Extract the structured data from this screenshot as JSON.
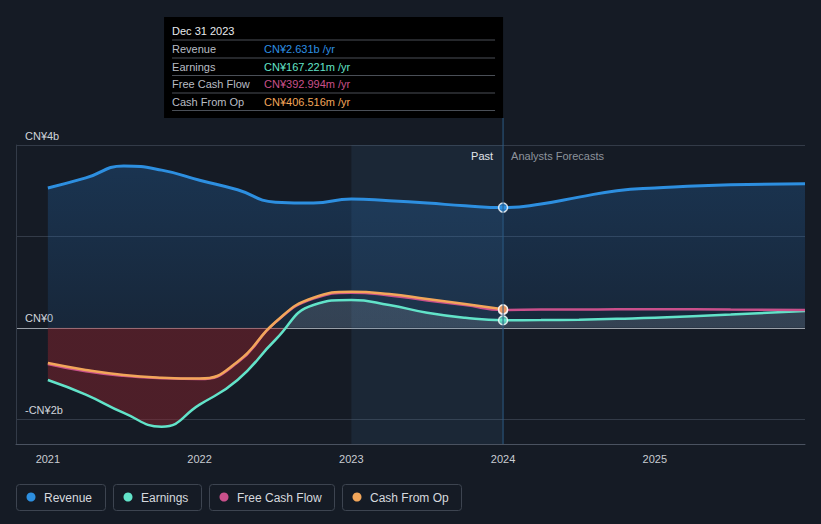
{
  "chart_data": {
    "type": "line",
    "x": [
      2021,
      2021.25,
      2021.5,
      2021.75,
      2022,
      2022.25,
      2022.5,
      2022.75,
      2023,
      2023.25,
      2023.5,
      2023.75,
      2024,
      2024.25,
      2024.5,
      2024.75,
      2025,
      2025.5,
      2025.99
    ],
    "series": [
      {
        "name": "Revenue",
        "color": "#2d8fe0",
        "values": [
          3.06,
          3.28,
          3.54,
          3.45,
          3.23,
          3.02,
          2.75,
          2.73,
          2.82,
          2.78,
          2.73,
          2.67,
          2.631,
          2.71,
          2.86,
          3.0,
          3.06,
          3.13,
          3.15
        ]
      },
      {
        "name": "Earnings",
        "color": "#62e3c9",
        "values": [
          -1.14,
          -1.46,
          -1.86,
          -2.16,
          -1.68,
          -1.14,
          -0.26,
          0.5,
          0.61,
          0.5,
          0.33,
          0.22,
          0.167221,
          0.17,
          0.18,
          0.2,
          0.22,
          0.29,
          0.37
        ]
      },
      {
        "name": "Free Cash Flow",
        "color": "#c9508b",
        "values": [
          -0.79,
          -0.95,
          -1.05,
          -1.1,
          -1.12,
          -0.76,
          0.12,
          0.64,
          0.77,
          0.71,
          0.6,
          0.5,
          0.392994,
          0.4,
          0.4,
          0.405,
          0.41,
          0.4,
          0.39
        ]
      },
      {
        "name": "Cash From Op",
        "color": "#f2a65a",
        "values": [
          -0.77,
          -0.92,
          -1.03,
          -1.09,
          -1.11,
          -0.74,
          0.13,
          0.66,
          0.79,
          0.74,
          0.63,
          0.52,
          0.406516,
          null,
          null,
          null,
          null,
          null,
          null
        ]
      }
    ],
    "xlim": [
      2020.79,
      2025.99
    ],
    "xticks": [
      2021,
      2022,
      2023,
      2024,
      2025
    ],
    "ylim": [
      -2.54,
      4
    ],
    "yticks": [
      {
        "value": -2,
        "label": "-CN¥2b"
      },
      {
        "value": 0,
        "label": "CN¥0"
      },
      {
        "value": 2,
        "label": null
      },
      {
        "value": 4,
        "label": "CN¥4b"
      }
    ],
    "grid": true,
    "legend": "bottom",
    "highlight": [
      2023,
      2024
    ],
    "annotations": [
      {
        "text": "Past",
        "x": 2024
      },
      {
        "text": "Analysts Forecasts",
        "x": 2024
      }
    ],
    "tooltip": {
      "x": 2024,
      "title": "Dec 31 2023",
      "rows": [
        {
          "name": "Revenue",
          "text": "CN¥2.631b /yr"
        },
        {
          "name": "Earnings",
          "text": "CN¥167.221m /yr"
        },
        {
          "name": "Free Cash Flow",
          "text": "CN¥392.994m /yr"
        },
        {
          "name": "Cash From Op",
          "text": "CN¥406.516m /yr"
        }
      ]
    }
  }
}
